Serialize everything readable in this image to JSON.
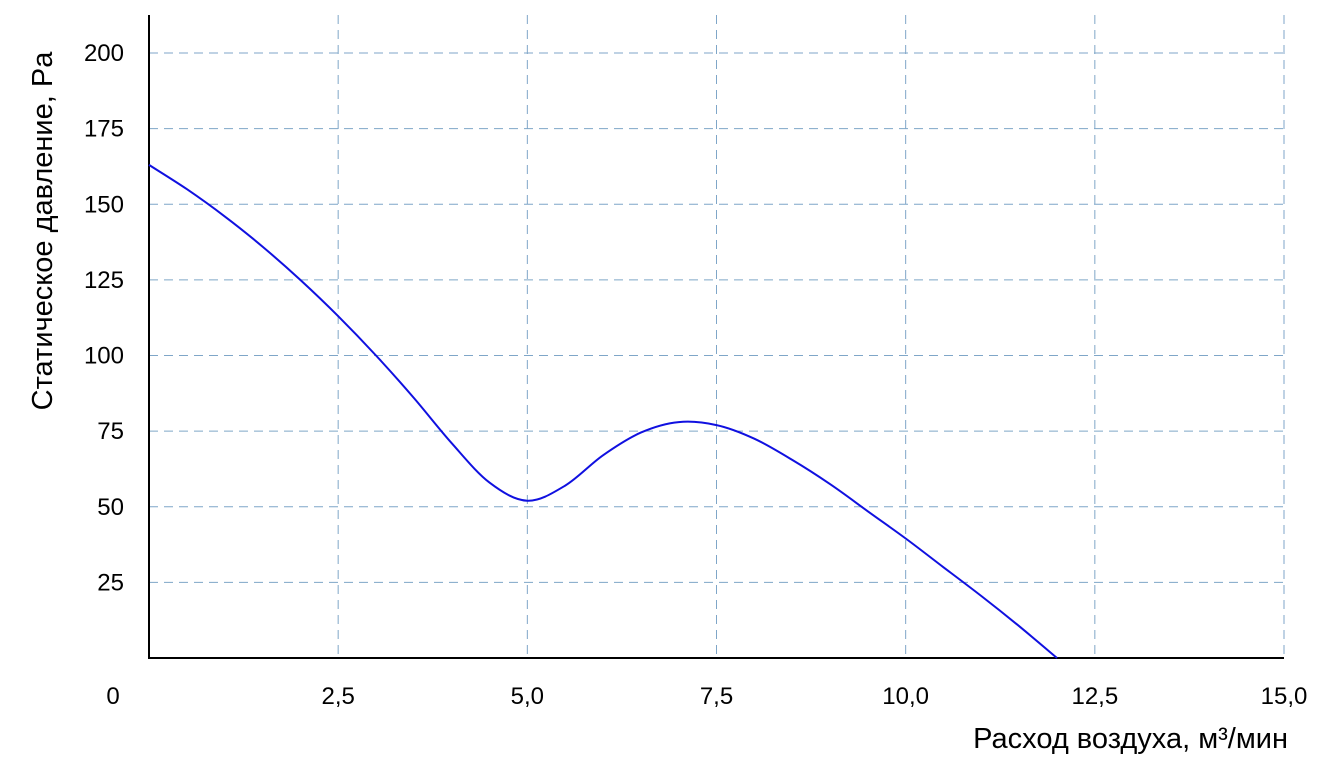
{
  "chart_data": {
    "type": "line",
    "xlabel": "Расход воздуха, м³/мин",
    "ylabel": "Статическое давление, Pa",
    "xlim": [
      0,
      15.0
    ],
    "ylim": [
      0,
      200
    ],
    "grid": true,
    "x_ticks": [
      {
        "value": 0,
        "label": "0"
      },
      {
        "value": 2.5,
        "label": "2,5"
      },
      {
        "value": 5.0,
        "label": "5,0"
      },
      {
        "value": 7.5,
        "label": "7,5"
      },
      {
        "value": 10.0,
        "label": "10,0"
      },
      {
        "value": 12.5,
        "label": "12,5"
      },
      {
        "value": 15.0,
        "label": "15,0"
      }
    ],
    "y_ticks": [
      {
        "value": 25,
        "label": "25"
      },
      {
        "value": 50,
        "label": "50"
      },
      {
        "value": 75,
        "label": "75"
      },
      {
        "value": 100,
        "label": "100"
      },
      {
        "value": 125,
        "label": "125"
      },
      {
        "value": 150,
        "label": "150"
      },
      {
        "value": 175,
        "label": "175"
      },
      {
        "value": 200,
        "label": "200"
      }
    ],
    "series": [
      {
        "color": "#1010e0",
        "x": [
          0,
          0.5,
          1.0,
          1.5,
          2.0,
          2.5,
          3.0,
          3.5,
          4.0,
          4.5,
          5.0,
          5.5,
          6.0,
          6.5,
          7.0,
          7.5,
          8.0,
          8.5,
          9.0,
          9.5,
          10.0,
          10.5,
          11.0,
          11.5,
          12.0
        ],
        "y": [
          163,
          155,
          146,
          136,
          125,
          113,
          100,
          86,
          71,
          58,
          52,
          57,
          67,
          74.5,
          78,
          77,
          72.5,
          65.5,
          57.5,
          48.5,
          39.5,
          30,
          20.5,
          10.5,
          0
        ]
      }
    ]
  }
}
